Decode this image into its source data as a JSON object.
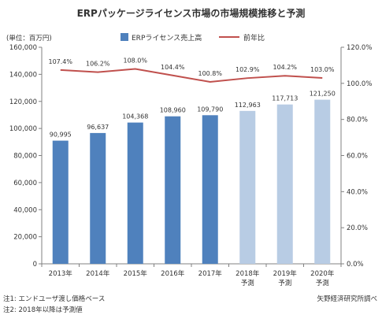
{
  "title": "ERPパッケージライセンス市場の市場規模推移と予測",
  "unit_label": "(単位：百万円)",
  "notes": [
    "注1: エンドユーザ渡し価格ベース",
    "注2: 2018年以降は予測値"
  ],
  "source": "矢野経済研究所調べ",
  "colors": {
    "actual_bar": "#4f81bd",
    "forecast_bar": "#b8cce4",
    "line": "#c0504d",
    "axis": "#808080"
  },
  "chart_data": {
    "type": "bar",
    "categories": [
      [
        "2013年"
      ],
      [
        "2014年"
      ],
      [
        "2015年"
      ],
      [
        "2016年"
      ],
      [
        "2017年"
      ],
      [
        "2018年",
        "予測"
      ],
      [
        "2019年",
        "予測"
      ],
      [
        "2020年",
        "予測"
      ]
    ],
    "series": [
      {
        "name": "ERPライセンス売上高",
        "type": "bar",
        "axis": "left",
        "values": [
          90995,
          96637,
          104368,
          108960,
          109790,
          112963,
          117713,
          121250
        ],
        "labels": [
          "90,995",
          "96,637",
          "104,368",
          "108,960",
          "109,790",
          "112,963",
          "117,713",
          "121,250"
        ],
        "forecast_from_index": 5
      },
      {
        "name": "前年比",
        "type": "line",
        "axis": "right",
        "values": [
          107.4,
          106.2,
          108.0,
          104.4,
          100.8,
          102.9,
          104.2,
          103.0
        ],
        "labels": [
          "107.4%",
          "106.2%",
          "108.0%",
          "104.4%",
          "100.8%",
          "102.9%",
          "104.2%",
          "103.0%"
        ]
      }
    ],
    "y_left": {
      "min": 0,
      "max": 160000,
      "step": 20000,
      "tick_labels": [
        "0",
        "20,000",
        "40,000",
        "60,000",
        "80,000",
        "100,000",
        "120,000",
        "140,000",
        "160,000"
      ]
    },
    "y_right": {
      "min": 0,
      "max": 120,
      "step": 20,
      "tick_labels": [
        "0.0%",
        "20.0%",
        "40.0%",
        "60.0%",
        "80.0%",
        "100.0%",
        "120.0%"
      ]
    },
    "grid": false,
    "legend_position": "top"
  }
}
